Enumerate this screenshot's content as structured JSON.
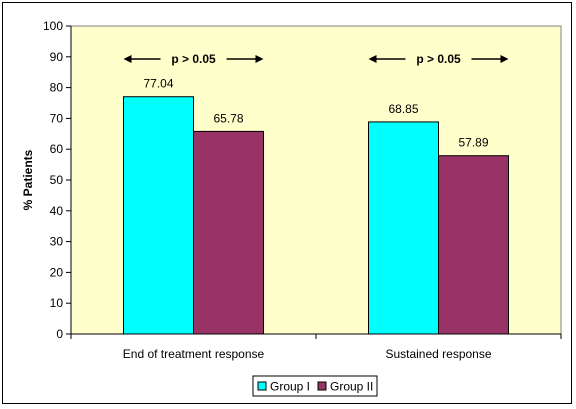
{
  "chart_data": {
    "type": "bar",
    "title": "",
    "xlabel": "",
    "ylabel": "% Patients",
    "ylim": [
      0,
      100
    ],
    "yticks": [
      0,
      10,
      20,
      30,
      40,
      50,
      60,
      70,
      80,
      90,
      100
    ],
    "grid": false,
    "legend_position": "bottom",
    "categories": [
      "End of treatment response",
      "Sustained response"
    ],
    "series": [
      {
        "name": "Group I",
        "values": [
          77.04,
          68.85
        ],
        "color": "#00FFFF"
      },
      {
        "name": "Group II",
        "values": [
          65.78,
          57.89
        ],
        "color": "#993366"
      }
    ],
    "data_labels": [
      [
        "77.04",
        "68.85"
      ],
      [
        "65.78",
        "57.89"
      ]
    ],
    "annotations": [
      "p > 0.05",
      "p > 0.05"
    ],
    "plot_background": "#FFFFCC"
  }
}
